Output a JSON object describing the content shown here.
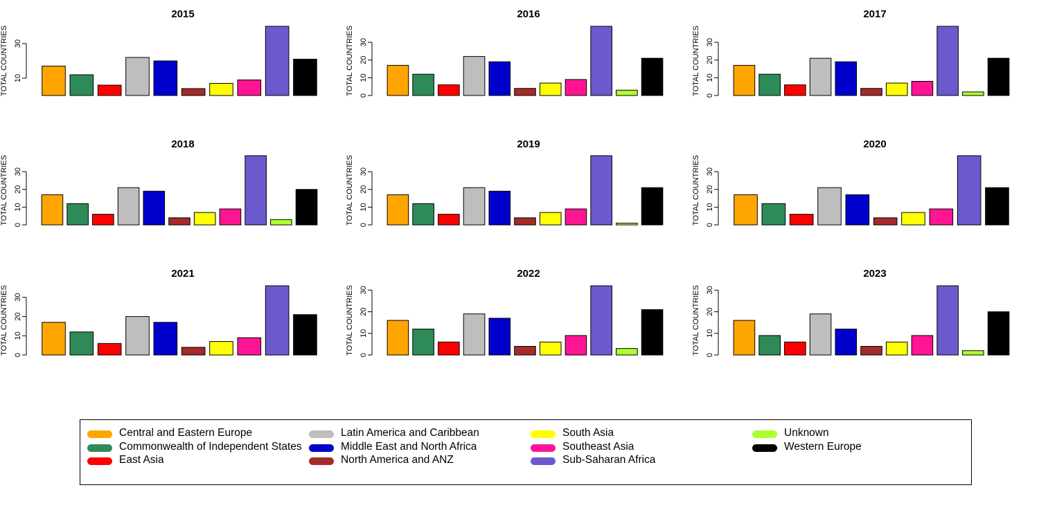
{
  "chart_data": {
    "type": "bar",
    "ylabel": "TOTAL COUNTRIES",
    "categories": [
      "Central and Eastern Europe",
      "Commonwealth of Independent States",
      "East Asia",
      "Latin America and Caribbean",
      "Middle East and North Africa",
      "North America and ANZ",
      "South Asia",
      "Southeast Asia",
      "Sub-Saharan Africa",
      "Unknown",
      "Western Europe"
    ],
    "colors": [
      "#FFA500",
      "#2E8B57",
      "#FF0000",
      "#BEBEBE",
      "#0000CD",
      "#A52A2A",
      "#FFFF00",
      "#FF1493",
      "#6A5ACD",
      "#ADFF2F",
      "#000000"
    ],
    "panels": [
      {
        "title": "2015",
        "values": [
          17,
          12,
          6,
          22,
          20,
          4,
          7,
          9,
          40,
          0,
          21
        ],
        "yticks": [
          10,
          30
        ],
        "ymax": 40
      },
      {
        "title": "2016",
        "values": [
          17,
          12,
          6,
          22,
          19,
          4,
          7,
          9,
          39,
          3,
          21
        ],
        "yticks": [
          0,
          10,
          20,
          30
        ],
        "ymax": 39
      },
      {
        "title": "2017",
        "values": [
          17,
          12,
          6,
          21,
          19,
          4,
          7,
          8,
          39,
          2,
          21
        ],
        "yticks": [
          0,
          10,
          20,
          30
        ],
        "ymax": 39
      },
      {
        "title": "2018",
        "values": [
          17,
          12,
          6,
          21,
          19,
          4,
          7,
          9,
          39,
          3,
          20
        ],
        "yticks": [
          0,
          10,
          20,
          30
        ],
        "ymax": 39
      },
      {
        "title": "2019",
        "values": [
          17,
          12,
          6,
          21,
          19,
          4,
          7,
          9,
          39,
          1,
          21
        ],
        "yticks": [
          0,
          10,
          20,
          30
        ],
        "ymax": 39
      },
      {
        "title": "2020",
        "values": [
          17,
          12,
          6,
          21,
          17,
          4,
          7,
          9,
          39,
          0,
          21
        ],
        "yticks": [
          0,
          10,
          20,
          30
        ],
        "ymax": 39
      },
      {
        "title": "2021",
        "values": [
          17,
          12,
          6,
          20,
          17,
          4,
          7,
          9,
          36,
          0,
          21
        ],
        "yticks": [
          0,
          10,
          20,
          30
        ],
        "ymax": 36
      },
      {
        "title": "2022",
        "values": [
          16,
          12,
          6,
          19,
          17,
          4,
          6,
          9,
          32,
          3,
          21
        ],
        "yticks": [
          0,
          10,
          20,
          30
        ],
        "ymax": 32
      },
      {
        "title": "2023",
        "values": [
          16,
          9,
          6,
          19,
          12,
          4,
          6,
          9,
          32,
          2,
          20
        ],
        "yticks": [
          0,
          10,
          20,
          30
        ],
        "ymax": 32
      }
    ],
    "legend_position": "bottom"
  }
}
